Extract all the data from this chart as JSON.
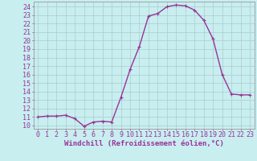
{
  "x": [
    0,
    1,
    2,
    3,
    4,
    5,
    6,
    7,
    8,
    9,
    10,
    11,
    12,
    13,
    14,
    15,
    16,
    17,
    18,
    19,
    20,
    21,
    22,
    23
  ],
  "y": [
    11.0,
    11.1,
    11.1,
    11.2,
    10.8,
    9.9,
    10.4,
    10.5,
    10.4,
    13.3,
    16.6,
    19.3,
    22.9,
    23.2,
    24.0,
    24.2,
    24.1,
    23.6,
    22.4,
    20.2,
    16.0,
    13.7,
    13.6,
    13.6
  ],
  "line_color": "#993399",
  "marker": "+",
  "marker_size": 3,
  "bg_color": "#c8eef0",
  "grid_color": "#aacccc",
  "xlabel": "Windchill (Refroidissement éolien,°C)",
  "ylabel_ticks": [
    10,
    11,
    12,
    13,
    14,
    15,
    16,
    17,
    18,
    19,
    20,
    21,
    22,
    23,
    24
  ],
  "xlim": [
    -0.5,
    23.5
  ],
  "ylim": [
    9.6,
    24.6
  ],
  "xlabel_fontsize": 6.5,
  "tick_fontsize": 6,
  "line_width": 1.0
}
